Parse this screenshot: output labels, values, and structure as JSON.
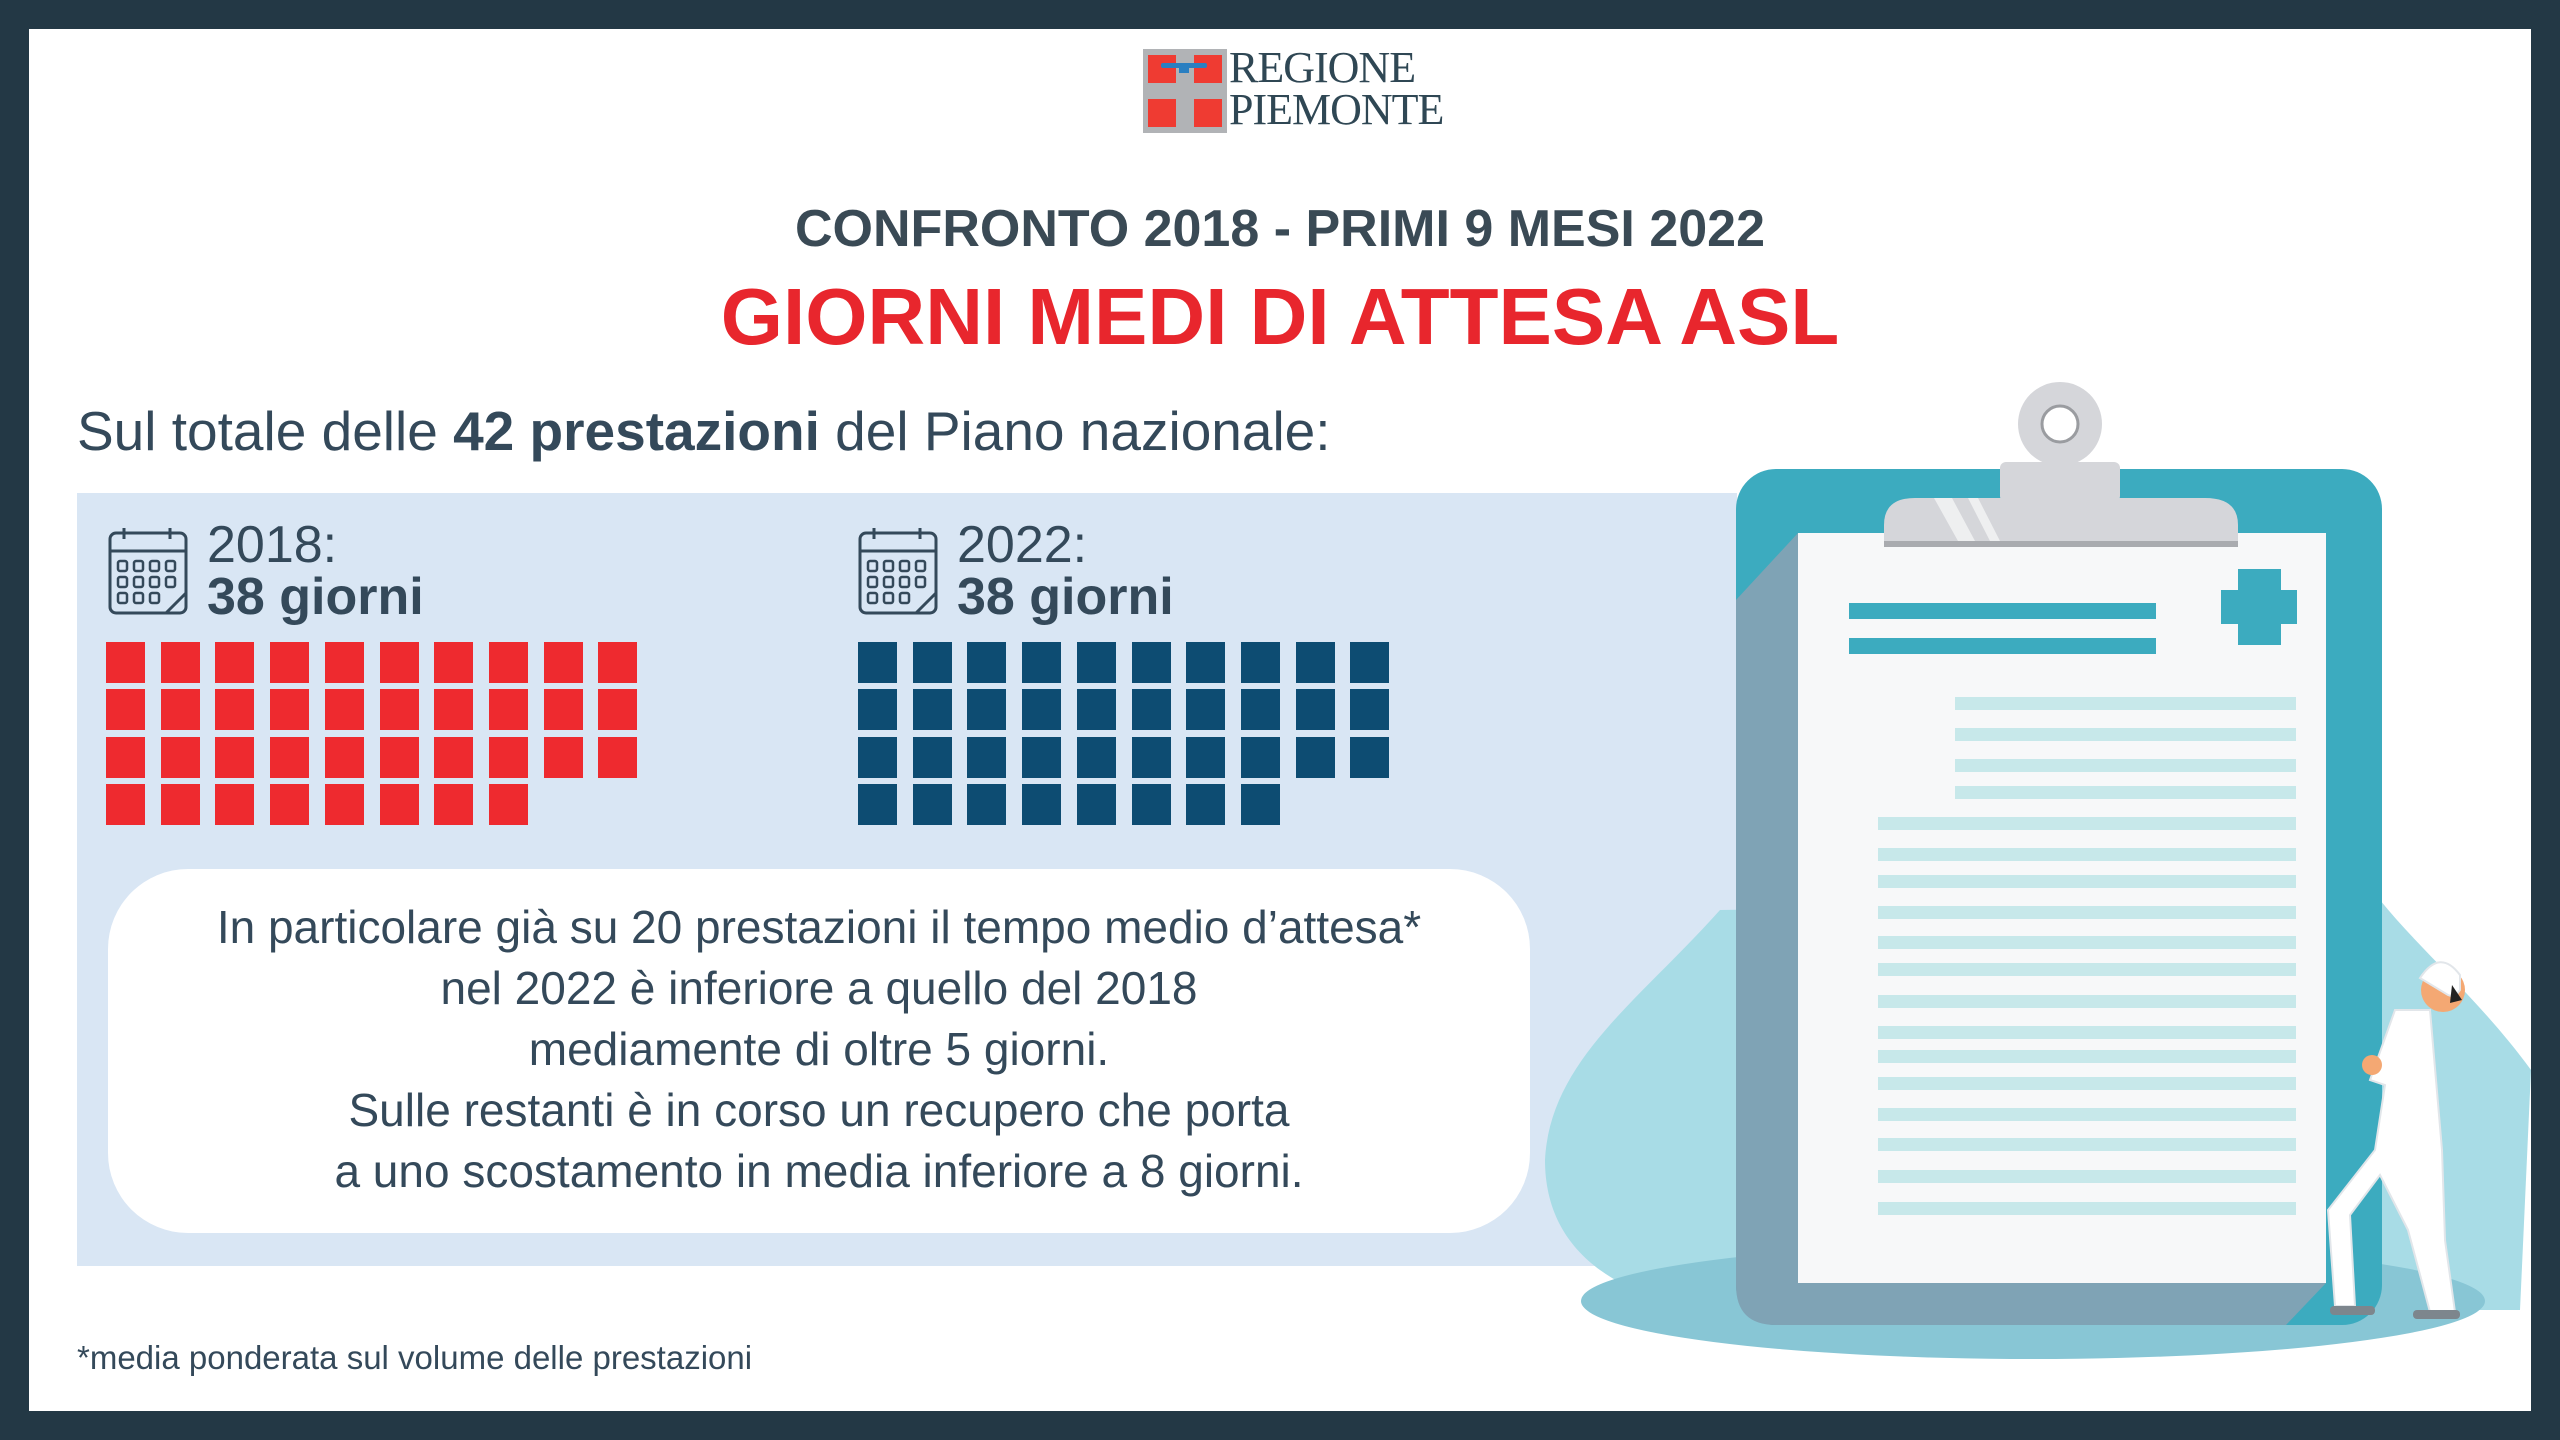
{
  "logo": {
    "line1": "REGIONE",
    "line2": "PIEMONTE",
    "colors": {
      "red": "#ef3b32",
      "gray": "#b1b3b6",
      "blue": "#2a7fc1"
    }
  },
  "header": {
    "subtitle": "CONFRONTO 2018 - PRIMI 9 MESI 2022",
    "title": "GIORNI MEDI DI ATTESA ASL"
  },
  "intro": {
    "before": "Sul totale delle ",
    "bold": "42 prestazioni",
    "after": " del Piano nazionale:"
  },
  "comparison": [
    {
      "year_label": "2018:",
      "days_label": "38 giorni",
      "days": 38,
      "color": "#ee2a2f",
      "icon": "calendar-icon"
    },
    {
      "year_label": "2022:",
      "days_label": "38 giorni",
      "days": 38,
      "color": "#0d4c72",
      "icon": "calendar-icon"
    }
  ],
  "note_box": {
    "lines": [
      "In particolare già su 20 prestazioni il tempo medio d’attesa*",
      "nel 2022 è inferiore a quello del 2018",
      "mediamente di oltre 5 giorni.",
      "Sulle restanti è in corso un recupero che porta",
      "a uno scostamento in media inferiore a 8 giorni."
    ]
  },
  "footnote": "*media ponderata sul volume delle prestazioni",
  "colors": {
    "border": "#233845",
    "panel": "#d9e6f4",
    "accent_red": "#e8262d",
    "teal": "#3cabbf",
    "text": "#34495a"
  }
}
